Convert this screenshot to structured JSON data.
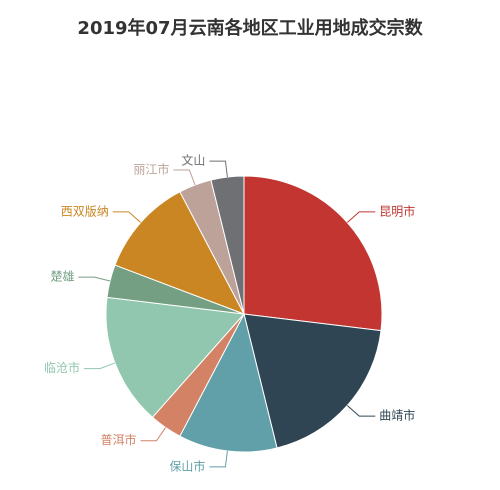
{
  "chart_data": {
    "type": "pie",
    "title": "2019年07月云南各地区工业用地成交宗数",
    "slices": [
      {
        "label": "昆明市",
        "value": 7,
        "color": "#c23531"
      },
      {
        "label": "曲靖市",
        "value": 5,
        "color": "#2f4554"
      },
      {
        "label": "保山市",
        "value": 3,
        "color": "#61a0a8"
      },
      {
        "label": "普洱市",
        "value": 1,
        "color": "#d48265"
      },
      {
        "label": "临沧市",
        "value": 4,
        "color": "#91c7ae"
      },
      {
        "label": "楚雄",
        "value": 1,
        "color": "#749f83"
      },
      {
        "label": "西双版纳",
        "value": 3,
        "color": "#ca8622"
      },
      {
        "label": "丽江市",
        "value": 1,
        "color": "#bda29a"
      },
      {
        "label": "文山",
        "value": 1,
        "color": "#6e7074"
      }
    ]
  }
}
